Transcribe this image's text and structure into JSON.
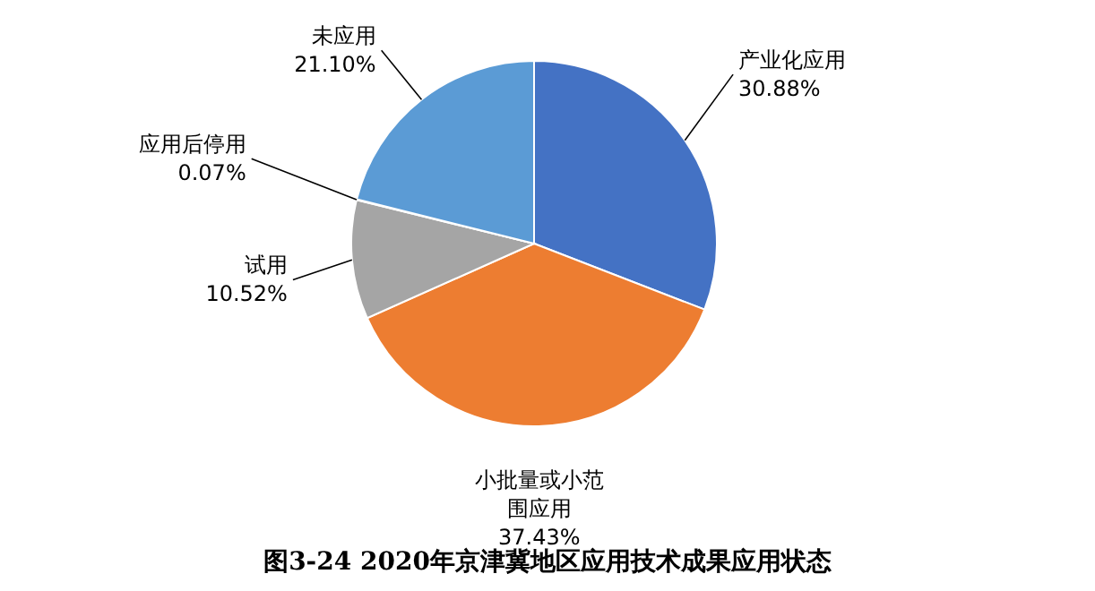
{
  "chart_data": {
    "type": "pie",
    "title": "图3-24  2020年京津冀地区应用技术成果应用状态",
    "categories": [
      "产业化应用",
      "小批量或小范围应用",
      "试用",
      "应用后停用",
      "未应用"
    ],
    "values": [
      30.88,
      37.43,
      10.52,
      0.07,
      21.1
    ],
    "colors": [
      "#4472c4",
      "#ed7d31",
      "#a5a5a5",
      "#ffc000",
      "#5b9bd5"
    ],
    "value_labels": [
      "30.88%",
      "37.43%",
      "10.52%",
      "0.07%",
      "21.10%"
    ]
  }
}
